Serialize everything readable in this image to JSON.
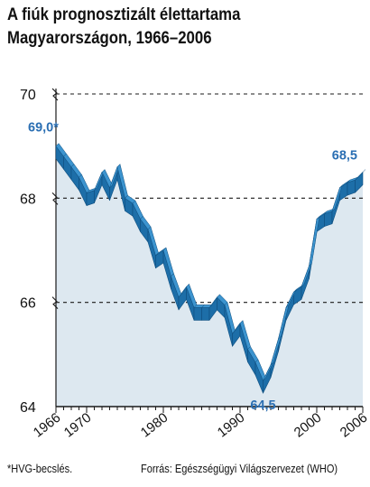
{
  "title_lines": [
    "A fiúk prognosztizált élettartama",
    "Magyarországon, 1966–2006"
  ],
  "footnote": "*HVG-becslés.",
  "source": "Forrás: Egészségügyi Világszervezet (WHO)",
  "colors": {
    "plot_background": "#dde8f0",
    "ribbon_top": "#3c94cf",
    "ribbon_side": "#1d6ea8",
    "ribbon_outline": "#0f4f80",
    "label_blue": "#2b6fb3",
    "grid": "#1a1a1a"
  },
  "chart_data": {
    "type": "area",
    "title": "A fiúk prognosztizált élettartama Magyarországon, 1966–2006",
    "xlabel": "",
    "ylabel": "",
    "xlim": [
      1966,
      2006
    ],
    "ylim": [
      64,
      70
    ],
    "yticks": [
      64,
      66,
      68,
      70
    ],
    "xticks": [
      1966,
      1970,
      1980,
      1990,
      2000,
      2006
    ],
    "grid": "dashed horizontal lines at 66, 68, 70",
    "style": "3D ribbon line over light shaded area",
    "x": [
      1966,
      1967,
      1968,
      1969,
      1970,
      1971,
      1972,
      1973,
      1974,
      1975,
      1976,
      1977,
      1978,
      1979,
      1980,
      1981,
      1982,
      1983,
      1984,
      1985,
      1986,
      1987,
      1988,
      1989,
      1990,
      1991,
      1992,
      1993,
      1994,
      1995,
      1996,
      1997,
      1998,
      1999,
      2000,
      2001,
      2002,
      2003,
      2004,
      2005,
      2006
    ],
    "series": [
      {
        "values": [
          69.0,
          68.8,
          68.6,
          68.4,
          68.1,
          68.15,
          68.5,
          68.2,
          68.6,
          68.0,
          67.9,
          67.6,
          67.4,
          66.9,
          67.0,
          66.5,
          66.1,
          66.3,
          65.9,
          65.9,
          65.9,
          66.1,
          65.95,
          65.4,
          65.6,
          65.1,
          64.85,
          64.5,
          64.8,
          65.3,
          65.9,
          66.2,
          66.3,
          66.7,
          67.6,
          67.7,
          67.75,
          68.2,
          68.3,
          68.35,
          68.5
        ],
        "annotations": [
          {
            "x": 1966,
            "y": 69.0,
            "text": "69,0*"
          },
          {
            "x": 1993,
            "y": 64.5,
            "text": "64,5"
          },
          {
            "x": 2006,
            "y": 68.5,
            "text": "68,5"
          }
        ]
      }
    ]
  }
}
